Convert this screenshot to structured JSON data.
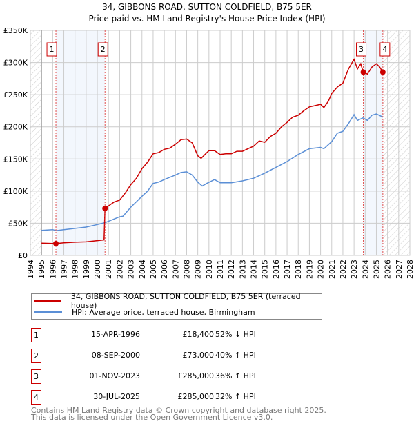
{
  "chart_data": {
    "type": "line",
    "title": "34, GIBBONS ROAD, SUTTON COLDFIELD, B75 5ER",
    "subtitle": "Price paid vs. HM Land Registry's House Price Index (HPI)",
    "xlim": [
      1994,
      2028
    ],
    "ylim": [
      0,
      350000
    ],
    "x_ticks": [
      "1994",
      "1995",
      "1996",
      "1997",
      "1998",
      "1999",
      "2000",
      "2001",
      "2002",
      "2003",
      "2004",
      "2005",
      "2006",
      "2007",
      "2008",
      "2009",
      "2010",
      "2011",
      "2012",
      "2013",
      "2014",
      "2015",
      "2016",
      "2017",
      "2018",
      "2019",
      "2020",
      "2021",
      "2022",
      "2023",
      "2024",
      "2025",
      "2026",
      "2027",
      "2028"
    ],
    "y_ticks": [
      {
        "v": 0,
        "label": "£0"
      },
      {
        "v": 50000,
        "label": "£50K"
      },
      {
        "v": 100000,
        "label": "£100K"
      },
      {
        "v": 150000,
        "label": "£150K"
      },
      {
        "v": 200000,
        "label": "£200K"
      },
      {
        "v": 250000,
        "label": "£250K"
      },
      {
        "v": 300000,
        "label": "£300K"
      },
      {
        "v": 350000,
        "label": "£350K"
      }
    ],
    "grid": true,
    "series": [
      {
        "name": "34, GIBBONS ROAD, SUTTON COLDFIELD, B75 5ER (terraced house)",
        "color": "#cc0000",
        "x": [
          1995,
          1996.3,
          1997,
          1998,
          1999,
          2000,
          2000.6,
          2000.69,
          2001,
          2001.5,
          2002,
          2002.5,
          2003,
          2003.5,
          2004,
          2004.5,
          2005,
          2005.5,
          2006,
          2006.5,
          2007,
          2007.5,
          2008,
          2008.5,
          2009,
          2009.3,
          2009.7,
          2010,
          2010.5,
          2011,
          2011.5,
          2012,
          2012.5,
          2013,
          2013.5,
          2014,
          2014.5,
          2015,
          2015.5,
          2016,
          2016.5,
          2017,
          2017.5,
          2018,
          2018.5,
          2019,
          2019.5,
          2020,
          2020.3,
          2020.7,
          2021,
          2021.5,
          2022,
          2022.5,
          2023,
          2023.3,
          2023.6,
          2023.83,
          2024.2,
          2024.6,
          2025,
          2025.3,
          2025.58
        ],
        "y": [
          19000,
          18400,
          19500,
          20500,
          21000,
          23000,
          24000,
          73000,
          77000,
          83000,
          86000,
          97000,
          110000,
          120000,
          135000,
          145000,
          158000,
          160000,
          165000,
          167000,
          173000,
          180000,
          181000,
          175000,
          155000,
          151000,
          158000,
          163000,
          163000,
          157000,
          158000,
          158000,
          162000,
          162000,
          166000,
          170000,
          178000,
          176000,
          185000,
          190000,
          200000,
          207000,
          215000,
          218000,
          225000,
          231000,
          233000,
          235000,
          230000,
          240000,
          252000,
          262000,
          268000,
          290000,
          305000,
          290000,
          298000,
          285000,
          282000,
          293000,
          298000,
          293000,
          285000
        ]
      },
      {
        "name": "HPI: Average price, terraced house, Birmingham",
        "color": "#5b8fd6",
        "x": [
          1995,
          1996,
          1996.3,
          1997,
          1998,
          1999,
          2000,
          2000.7,
          2001,
          2002,
          2002.3,
          2003,
          2004,
          2004.5,
          2005,
          2005.5,
          2006,
          2007,
          2007.5,
          2008,
          2008.5,
          2009,
          2009.4,
          2009.8,
          2010.5,
          2011,
          2012,
          2013,
          2014,
          2015,
          2016,
          2017,
          2018,
          2019,
          2020,
          2020.3,
          2021,
          2021.5,
          2022,
          2022.5,
          2023,
          2023.3,
          2023.8,
          2024.2,
          2024.6,
          2025,
          2025.6
        ],
        "y": [
          39000,
          40000,
          38500,
          40000,
          42000,
          44000,
          48000,
          51000,
          53000,
          60000,
          61000,
          75000,
          92000,
          100000,
          112000,
          114000,
          118000,
          125000,
          129000,
          130000,
          125000,
          114000,
          108000,
          112000,
          118000,
          113000,
          113000,
          116000,
          120000,
          128000,
          137000,
          146000,
          157000,
          166000,
          168000,
          166000,
          177000,
          190000,
          193000,
          205000,
          219000,
          210000,
          214000,
          210000,
          218000,
          220000,
          215000
        ]
      }
    ],
    "sales": [
      {
        "label": "1",
        "x": 1996.29,
        "price": 18400
      },
      {
        "label": "2",
        "x": 2000.69,
        "price": 73000
      },
      {
        "label": "3",
        "x": 2023.83,
        "price": 285000
      },
      {
        "label": "4",
        "x": 2025.58,
        "price": 285000
      }
    ],
    "legend_placement": "below"
  },
  "legend": {
    "property": "34, GIBBONS ROAD, SUTTON COLDFIELD, B75 5ER (terraced house)",
    "hpi": "HPI: Average price, terraced house, Birmingham"
  },
  "transactions": [
    {
      "num": "1",
      "date": "15-APR-1996",
      "price": "£18,400",
      "hpi": "52% ↓ HPI"
    },
    {
      "num": "2",
      "date": "08-SEP-2000",
      "price": "£73,000",
      "hpi": "40% ↑ HPI"
    },
    {
      "num": "3",
      "date": "01-NOV-2023",
      "price": "£285,000",
      "hpi": "36% ↑ HPI"
    },
    {
      "num": "4",
      "date": "30-JUL-2025",
      "price": "£285,000",
      "hpi": "32% ↑ HPI"
    }
  ],
  "footer": {
    "line1": "Contains HM Land Registry data © Crown copyright and database right 2025.",
    "line2": "This data is licensed under the Open Government Licence v3.0."
  }
}
